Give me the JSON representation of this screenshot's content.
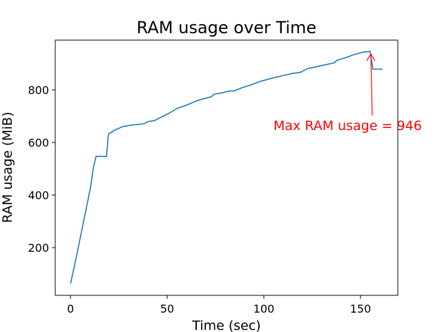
{
  "chart_data": {
    "type": "line",
    "title": "RAM usage over Time",
    "xlabel": "Time (sec)",
    "ylabel": "RAM usage (MiB)",
    "annotation": "Max RAM usage = 946",
    "xlim": [
      -7.9,
      169.3
    ],
    "ylim": [
      18.4,
      989.5
    ],
    "xticks": [
      0,
      50,
      100,
      150
    ],
    "yticks": [
      200,
      400,
      600,
      800
    ],
    "series": [
      {
        "name": "RAM usage",
        "color": "#1f77b4",
        "x": [
          0,
          2,
          4,
          10.4,
          11.8,
          13.2,
          18.6,
          19.6,
          20.7,
          22.9,
          27.1,
          31.4,
          37.9,
          40,
          43.6,
          47.9,
          51.4,
          55,
          60,
          65,
          68.6,
          72.9,
          74.3,
          78.6,
          81.4,
          85,
          88.6,
          92.9,
          97.9,
          102.9,
          105.7,
          110,
          115,
          118.6,
          122.9,
          126.4,
          131.4,
          136.4,
          137.9,
          142.9,
          146.4,
          151.4,
          155,
          156.4,
          161.4
        ],
        "values": [
          63,
          129,
          200,
          431,
          503,
          547,
          547,
          632,
          637,
          647,
          661,
          666,
          671,
          679,
          684,
          700,
          713,
          729,
          742,
          758,
          766,
          774,
          784,
          789,
          795,
          797,
          808,
          818,
          832,
          842,
          847,
          855,
          863,
          866,
          882,
          887,
          895,
          903,
          913,
          924,
          934,
          944,
          946,
          879,
          879
        ]
      }
    ]
  }
}
